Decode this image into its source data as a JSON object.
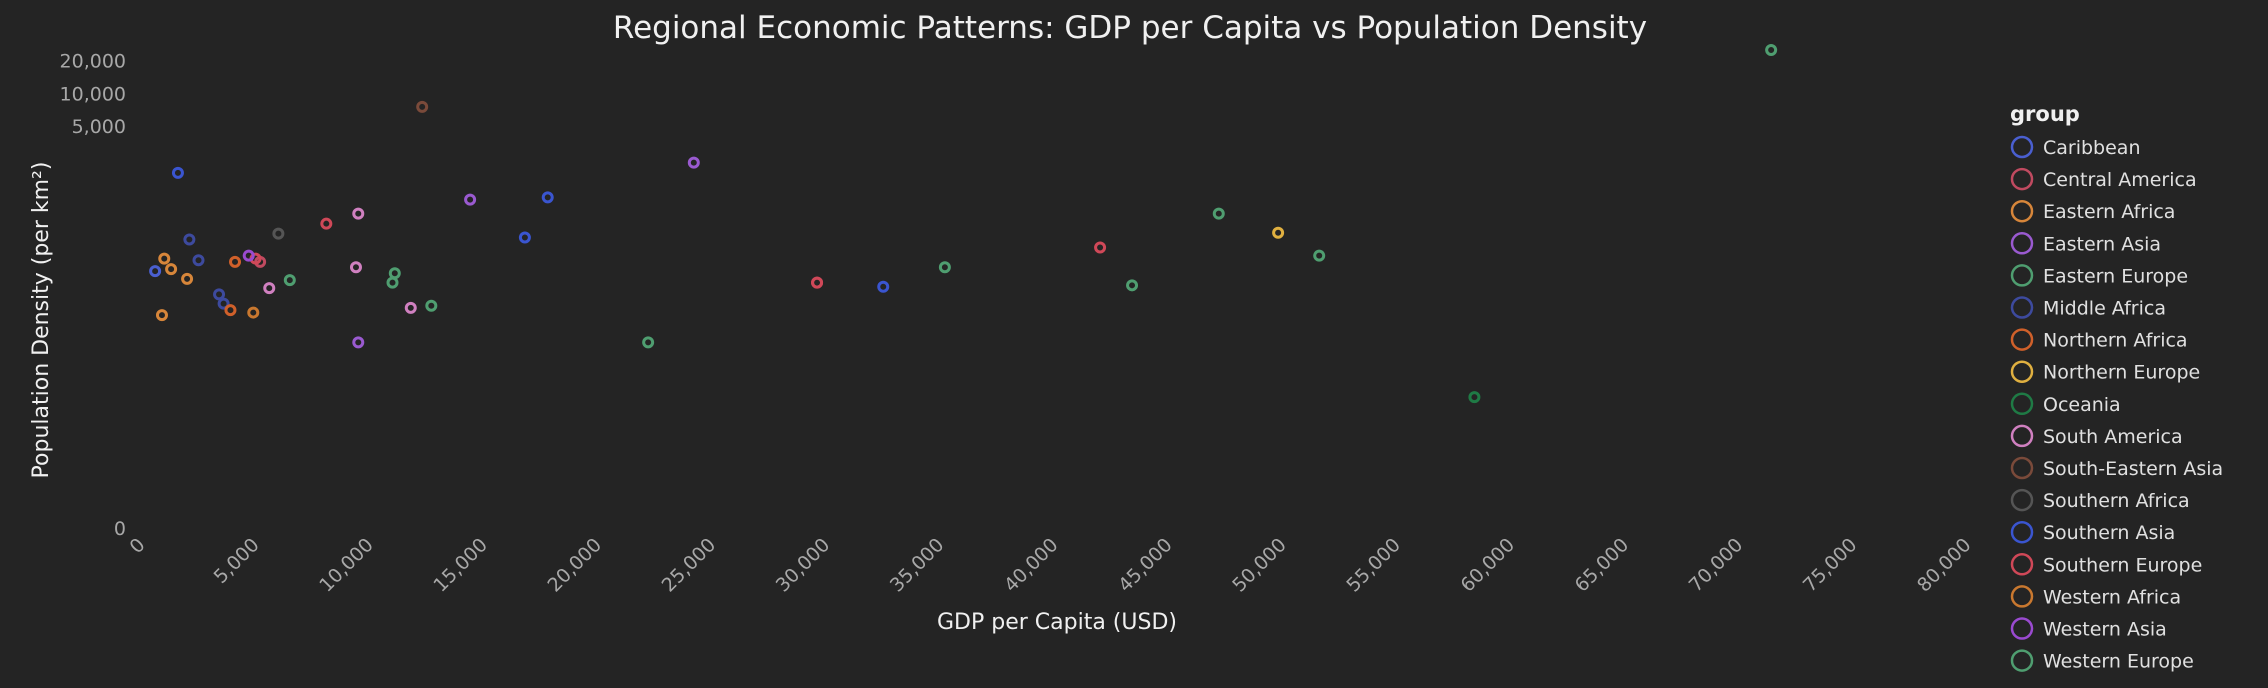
{
  "chart_data": {
    "type": "scatter",
    "title": "Regional Economic Patterns: GDP per Capita vs Population Density",
    "xlabel": "GDP per Capita (USD)",
    "ylabel": "Population Density (per km²)",
    "x_scale": "linear",
    "y_scale": "log",
    "xlim": [
      0,
      80000
    ],
    "xticks": [
      0,
      5000,
      10000,
      15000,
      20000,
      25000,
      30000,
      35000,
      40000,
      45000,
      50000,
      55000,
      60000,
      65000,
      70000,
      75000,
      80000
    ],
    "xtick_labels": [
      "0",
      "5,000",
      "10,000",
      "15,000",
      "20,000",
      "25,000",
      "30,000",
      "35,000",
      "40,000",
      "45,000",
      "50,000",
      "55,000",
      "60,000",
      "65,000",
      "70,000",
      "75,000",
      "80,000"
    ],
    "yticks": [
      0,
      5000,
      10000,
      20000
    ],
    "ytick_labels": [
      "0",
      "5,000",
      "10,000",
      "20,000"
    ],
    "grid": false,
    "legend": {
      "title": "group",
      "placement": "right"
    },
    "series": [
      {
        "name": "Caribbean",
        "color": "#4a5fd0",
        "points": [
          [
            400,
            230
          ]
        ]
      },
      {
        "name": "Central America",
        "color": "#c04a60",
        "points": [
          [
            5000,
            280
          ],
          [
            29400,
            180
          ]
        ]
      },
      {
        "name": "Eastern Africa",
        "color": "#d7863a",
        "points": [
          [
            700,
            90
          ],
          [
            800,
            300
          ],
          [
            1100,
            240
          ],
          [
            1800,
            195
          ]
        ]
      },
      {
        "name": "Eastern Asia",
        "color": "#9a5ad0",
        "points": [
          [
            9300,
            50
          ],
          [
            14200,
            1050
          ],
          [
            24000,
            2300
          ]
        ]
      },
      {
        "name": "Eastern Europe",
        "color": "#4f9e70",
        "points": [
          [
            6300,
            190
          ],
          [
            10800,
            180
          ],
          [
            10900,
            220
          ],
          [
            12500,
            110
          ],
          [
            22000,
            50
          ],
          [
            35000,
            250
          ],
          [
            43200,
            170
          ],
          [
            47000,
            780
          ],
          [
            51400,
            320
          ]
        ]
      },
      {
        "name": "Middle Africa",
        "color": "#3d4a9e",
        "points": [
          [
            1900,
            450
          ],
          [
            2300,
            290
          ],
          [
            3200,
            140
          ],
          [
            3400,
            115
          ]
        ]
      },
      {
        "name": "Northern Africa",
        "color": "#d0602a",
        "points": [
          [
            3700,
            100
          ],
          [
            3900,
            280
          ]
        ]
      },
      {
        "name": "Northern Europe",
        "color": "#e0b040",
        "points": [
          [
            49600,
            520
          ]
        ]
      },
      {
        "name": "Oceania",
        "color": "#1f7a45",
        "points": [
          [
            58200,
            15
          ]
        ]
      },
      {
        "name": "South America",
        "color": "#d080c0",
        "points": [
          [
            5400,
            160
          ],
          [
            9200,
            250
          ],
          [
            9300,
            780
          ],
          [
            11600,
            105
          ]
        ]
      },
      {
        "name": "South-Eastern Asia",
        "color": "#7a4a3a",
        "points": [
          [
            12100,
            7500
          ]
        ]
      },
      {
        "name": "Southern Africa",
        "color": "#555555",
        "points": [
          [
            5800,
            510
          ]
        ]
      },
      {
        "name": "Southern Asia",
        "color": "#3a55d0",
        "points": [
          [
            1400,
            1850
          ],
          [
            16600,
            470
          ],
          [
            17600,
            1100
          ],
          [
            32300,
            165
          ]
        ]
      },
      {
        "name": "Southern Europe",
        "color": "#d04858",
        "points": [
          [
            4800,
            300
          ],
          [
            7900,
            630
          ],
          [
            29400,
            180
          ],
          [
            41800,
            380
          ]
        ]
      },
      {
        "name": "Western Africa",
        "color": "#c9782f",
        "points": [
          [
            4700,
            95
          ]
        ]
      },
      {
        "name": "Western Asia",
        "color": "#9a4ad0",
        "points": [
          [
            4500,
            320
          ]
        ]
      },
      {
        "name": "Western Europe",
        "color": "#4f9e70",
        "points": [
          [
            71200,
            25000
          ]
        ]
      }
    ]
  }
}
